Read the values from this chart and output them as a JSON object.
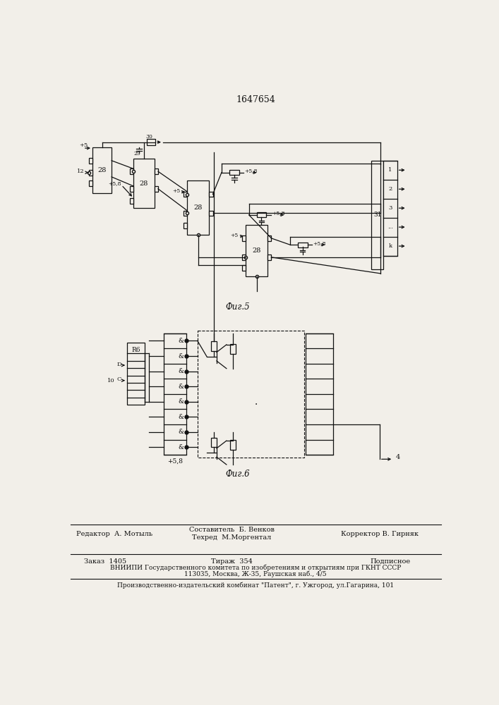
{
  "title": "1647654",
  "fig5_label": "Фиг.5",
  "fig6_label": "Фиг.6",
  "footer_line1_left": "Редактор  А. Мотыль",
  "footer_line1_center1": "Составитель  Б. Венков",
  "footer_line1_center2": "Техред  М.Моргентал",
  "footer_line1_right": "Корректор В. Гирняк",
  "footer_line2_left": "Заказ  1405",
  "footer_line2_center": "Тираж  354",
  "footer_line2_right": "Подписное",
  "footer_line3": "ВНИИПИ Государственного комитета по изобретениям и открытиям при ГКНТ СССР",
  "footer_line4": "113035, Москва, Ж-35, Раушская наб., 4/5",
  "footer_line5": "Производственно-издательский комбинат \"Патент\", г. Ужгород, ул.Гагарина, 101",
  "bg_color": "#f2efe9",
  "line_color": "#111111",
  "text_color": "#111111"
}
